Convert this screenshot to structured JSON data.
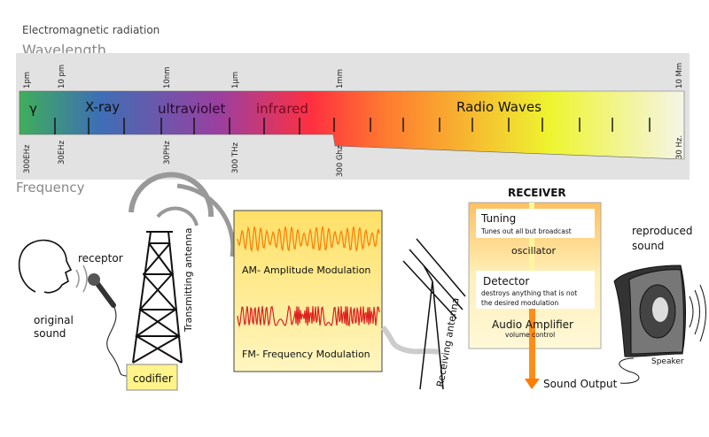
{
  "header": {
    "title": "Electromagnetic radiation",
    "wavelength_label": "Wavelength",
    "frequency_label": "Frequency"
  },
  "spectrum": {
    "bands": [
      "γ",
      "X-ray",
      "ultraviolet",
      "infrared",
      "Radio Waves"
    ],
    "wavelength_ticks": [
      "1pm",
      "10 pm",
      "10nm",
      "1µm",
      "1mm",
      "10 Mm"
    ],
    "frequency_ticks": [
      "300EHz",
      "30EHz",
      "30PHz",
      "300 THz",
      "300 Ghz",
      "30 Hz."
    ],
    "colors": [
      "#3fae5a",
      "#3d6fb5",
      "#9a3fa0",
      "#ff3040",
      "#ff8030",
      "#eef530",
      "#f5f5e8"
    ]
  },
  "transmitter": {
    "receptor": "receptor",
    "original_sound": [
      "original",
      "sound"
    ],
    "antenna": "Transmitting antenna",
    "codifier": "codifier"
  },
  "modulation": {
    "am": "AM- Amplitude Modulation",
    "fm": "FM- Frequency Modulation"
  },
  "receiving_antenna": "Receiving antenna",
  "receiver": {
    "title": "RECEIVER",
    "tuning": "Tuning",
    "tuning_desc": "Tunes out all but broadcast",
    "oscillator": "oscillator",
    "detector": "Detector",
    "detector_desc": [
      "destroys anything that is not",
      "the desired modulation"
    ],
    "amplifier": "Audio Amplifier",
    "amplifier_desc": "volume control",
    "output": "Sound Output"
  },
  "speaker": {
    "reproduced": [
      "reproduced",
      "sound"
    ],
    "label": "Speaker"
  }
}
